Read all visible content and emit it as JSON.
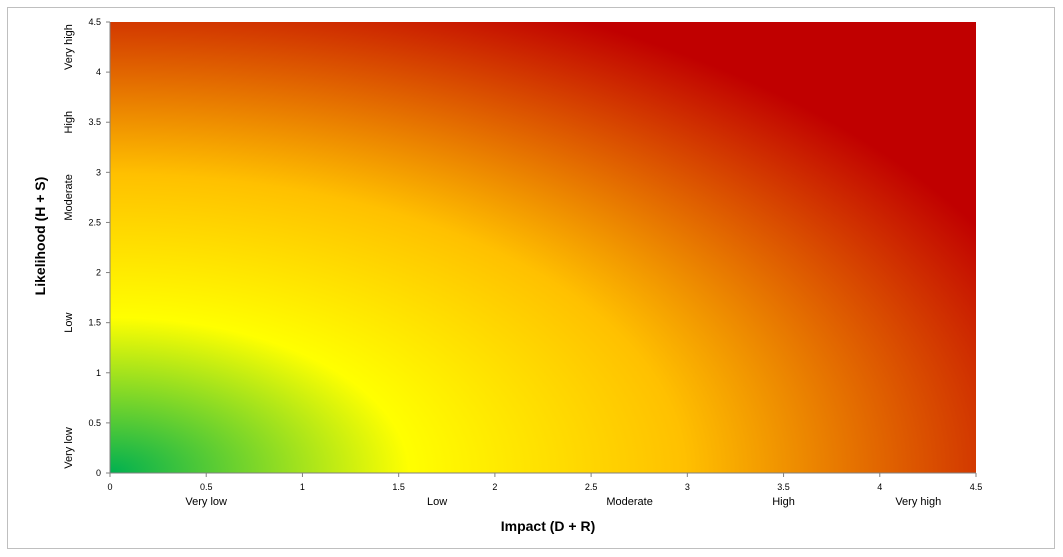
{
  "chart_data": {
    "type": "heatmap",
    "title": "",
    "xlabel": "Impact (D  + R)",
    "ylabel": "Likelihood (H + S)",
    "xlim": [
      0,
      4.5
    ],
    "ylim": [
      0,
      4.5
    ],
    "x_ticks": [
      "0",
      "0.5",
      "1",
      "1.5",
      "2",
      "2.5",
      "3",
      "3.5",
      "4",
      "4.5"
    ],
    "y_ticks": [
      "0",
      "0.5",
      "1",
      "1.5",
      "2",
      "2.5",
      "3",
      "3.5",
      "4",
      "4.5"
    ],
    "x_category_labels": [
      {
        "label": "Very low",
        "at": 0.5
      },
      {
        "label": "Low",
        "at": 1.7
      },
      {
        "label": "Moderate",
        "at": 2.7
      },
      {
        "label": "High",
        "at": 3.5
      },
      {
        "label": "Very high",
        "at": 4.2
      }
    ],
    "y_category_labels": [
      {
        "label": "Very low",
        "at": 0.25
      },
      {
        "label": "Low",
        "at": 1.5
      },
      {
        "label": "Moderate",
        "at": 2.75
      },
      {
        "label": "High",
        "at": 3.5
      },
      {
        "label": "Very high",
        "at": 4.25
      }
    ],
    "color_scale": {
      "low": "#00b050",
      "mid": "#ffff00",
      "mid_high": "#ffc000",
      "high": "#c00000"
    },
    "grid": false
  }
}
